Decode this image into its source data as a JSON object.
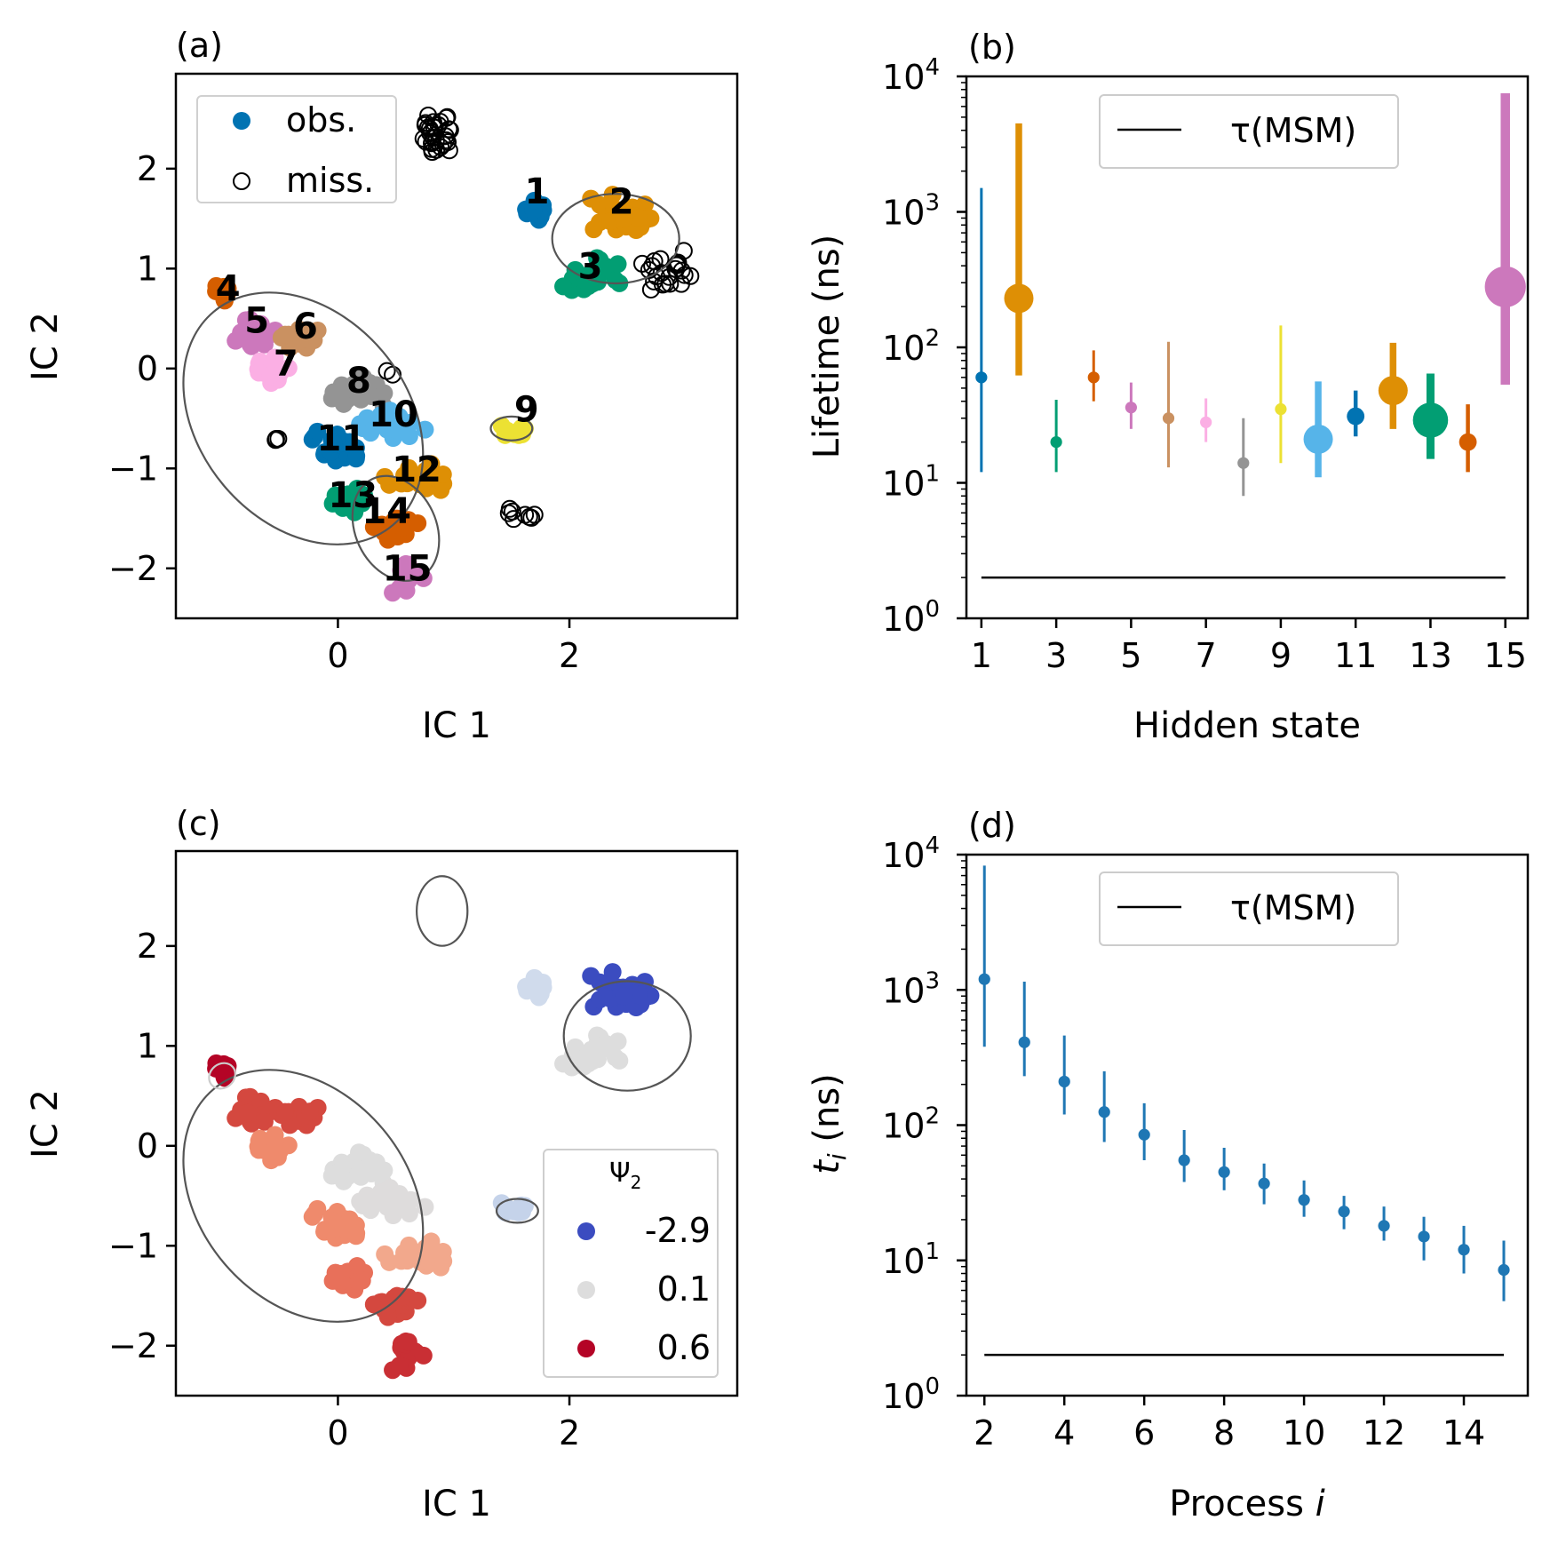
{
  "chart_data": [
    {
      "panel": "(a)",
      "type": "scatter",
      "xlabel": "IC 1",
      "ylabel": "IC 2",
      "xlim": [
        -1.4,
        3.45
      ],
      "ylim": [
        -2.5,
        2.95
      ],
      "xticks": [
        0,
        2
      ],
      "yticks": [
        -2,
        -1,
        0,
        1,
        2
      ],
      "legend": {
        "placement": "upper-left",
        "entries": [
          {
            "label": "obs.",
            "marker": "filled"
          },
          {
            "label": "miss.",
            "marker": "open"
          }
        ]
      },
      "state_labels": [
        {
          "label": "1",
          "x": 1.72,
          "y": 1.65
        },
        {
          "label": "2",
          "x": 2.45,
          "y": 1.55
        },
        {
          "label": "3",
          "x": 2.18,
          "y": 0.9
        },
        {
          "label": "4",
          "x": -0.95,
          "y": 0.68
        },
        {
          "label": "5",
          "x": -0.7,
          "y": 0.36
        },
        {
          "label": "6",
          "x": -0.28,
          "y": 0.3
        },
        {
          "label": "7",
          "x": -0.45,
          "y": -0.07
        },
        {
          "label": "8",
          "x": 0.18,
          "y": -0.24
        },
        {
          "label": "9",
          "x": 1.63,
          "y": -0.53
        },
        {
          "label": "10",
          "x": 0.48,
          "y": -0.58
        },
        {
          "label": "11",
          "x": 0.03,
          "y": -0.82
        },
        {
          "label": "12",
          "x": 0.68,
          "y": -1.13
        },
        {
          "label": "13",
          "x": 0.13,
          "y": -1.39
        },
        {
          "label": "14",
          "x": 0.42,
          "y": -1.55
        },
        {
          "label": "15",
          "x": 0.6,
          "y": -2.12
        }
      ],
      "state_colors": [
        "#0173b2",
        "#de8f05",
        "#029e73",
        "#d55e00",
        "#cc78bc",
        "#ca9161",
        "#fbafe4",
        "#949494",
        "#ece133",
        "#56b4e9",
        "#0173b2",
        "#de8f05",
        "#029e73",
        "#d55e00",
        "#cc78bc"
      ]
    },
    {
      "panel": "(b)",
      "type": "errorbar",
      "xlabel": "Hidden state",
      "ylabel": "Lifetime (ns)",
      "yscale": "log",
      "ylim": [
        1,
        10000
      ],
      "xticks": [
        1,
        3,
        5,
        7,
        9,
        11,
        13,
        15
      ],
      "yticks": [
        "10^0",
        "10^1",
        "10^2",
        "10^3",
        "10^4"
      ],
      "legend": {
        "placement": "upper-center",
        "entries": [
          {
            "label": "τ(MSM)"
          }
        ]
      },
      "msm_lag_ns": 2,
      "x": [
        1,
        2,
        3,
        4,
        5,
        6,
        7,
        8,
        9,
        10,
        11,
        12,
        13,
        14,
        15
      ],
      "y": [
        60,
        230,
        20,
        60,
        36,
        30,
        28,
        14,
        35,
        21,
        31,
        48,
        29,
        20,
        280
      ],
      "y_low": [
        12,
        62,
        12,
        40,
        25,
        13,
        20,
        8,
        14,
        11,
        22,
        25,
        15,
        12,
        53
      ],
      "y_high": [
        1500,
        4500,
        41,
        95,
        55,
        110,
        42,
        30,
        145,
        56,
        48,
        108,
        64,
        38,
        7500
      ],
      "colors": [
        "#0173b2",
        "#de8f05",
        "#029e73",
        "#d55e00",
        "#cc78bc",
        "#ca9161",
        "#fbafe4",
        "#949494",
        "#ece133",
        "#56b4e9",
        "#0173b2",
        "#de8f05",
        "#029e73",
        "#d55e00",
        "#cc78bc"
      ]
    },
    {
      "panel": "(c)",
      "type": "scatter",
      "xlabel": "IC 1",
      "ylabel": "IC 2",
      "xlim": [
        -1.4,
        3.45
      ],
      "ylim": [
        -2.5,
        2.95
      ],
      "xticks": [
        0,
        2
      ],
      "yticks": [
        -2,
        -1,
        0,
        1,
        2
      ],
      "colorbar_legend": {
        "title": "Ψ",
        "title_subscript": "2",
        "placement": "lower-right",
        "entries": [
          {
            "label": "-2.9",
            "color": "#3b4cc0"
          },
          {
            "label": "0.1",
            "color": "#dddddd"
          },
          {
            "label": "0.6",
            "color": "#b40426"
          }
        ]
      }
    },
    {
      "panel": "(d)",
      "type": "errorbar",
      "xlabel": "Process ",
      "xlabel_italic": "i",
      "ylabel_italic": "t",
      "ylabel_subscript": "i",
      "ylabel": " (ns)",
      "yscale": "log",
      "ylim": [
        1,
        10000
      ],
      "xticks": [
        2,
        4,
        6,
        8,
        10,
        12,
        14
      ],
      "yticks": [
        "10^0",
        "10^1",
        "10^2",
        "10^3",
        "10^4"
      ],
      "legend": {
        "placement": "upper-center",
        "entries": [
          {
            "label": "τ(MSM)"
          }
        ]
      },
      "msm_lag_ns": 2,
      "color": "#1f77b4",
      "x": [
        2,
        3,
        4,
        5,
        6,
        7,
        8,
        9,
        10,
        11,
        12,
        13,
        14,
        15
      ],
      "y": [
        1200,
        410,
        210,
        125,
        85,
        55,
        45,
        37,
        28,
        23,
        18,
        15,
        12,
        8.5
      ],
      "y_low": [
        380,
        230,
        120,
        75,
        55,
        38,
        33,
        26,
        21,
        17,
        14,
        10,
        8,
        5
      ],
      "y_high": [
        8300,
        1150,
        460,
        250,
        145,
        92,
        68,
        52,
        39,
        30,
        25,
        21,
        18,
        14
      ]
    }
  ]
}
